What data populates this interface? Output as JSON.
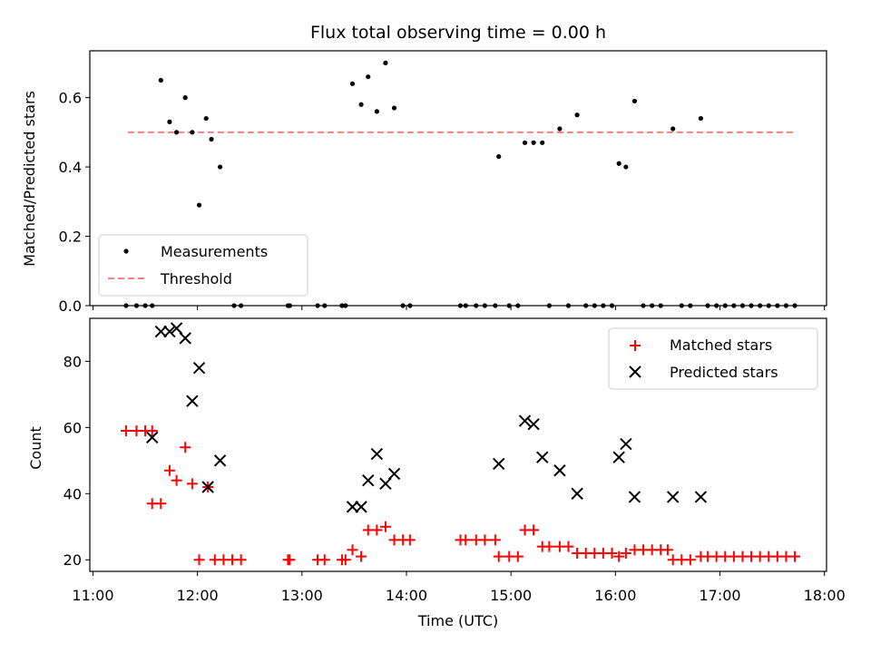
{
  "chart_data": [
    {
      "type": "scatter",
      "title": "Flux total observing time = 0.00 h",
      "xlabel": "",
      "ylabel": "Matched/Predicted stars",
      "xlim_hours": [
        10.97,
        18.02
      ],
      "ylim": [
        0,
        0.735
      ],
      "yticks": [
        "0.0",
        "0.2",
        "0.4",
        "0.6"
      ],
      "legend": {
        "position": "lower-left",
        "entries": [
          "Measurements",
          "Threshold"
        ]
      },
      "threshold": {
        "name": "Threshold",
        "y": 0.5,
        "x_start": "11:20",
        "x_end": "17:43",
        "color": "#ff7f7f"
      },
      "series": [
        {
          "name": "Measurements",
          "color": "#000000",
          "points": [
            [
              "11:19",
              0.0
            ],
            [
              "11:25",
              0.0
            ],
            [
              "11:30",
              0.0
            ],
            [
              "11:34",
              0.0
            ],
            [
              "11:39",
              0.65
            ],
            [
              "11:44",
              0.53
            ],
            [
              "11:48",
              0.5
            ],
            [
              "11:53",
              0.6
            ],
            [
              "11:57",
              0.5
            ],
            [
              "12:01",
              0.29
            ],
            [
              "12:05",
              0.54
            ],
            [
              "12:08",
              0.48
            ],
            [
              "12:13",
              0.4
            ],
            [
              "12:21",
              0.0
            ],
            [
              "12:25",
              0.0
            ],
            [
              "12:52",
              0.0
            ],
            [
              "12:53",
              0.0
            ],
            [
              "13:09",
              0.0
            ],
            [
              "13:13",
              0.0
            ],
            [
              "13:23",
              0.0
            ],
            [
              "13:25",
              0.0
            ],
            [
              "13:29",
              0.64
            ],
            [
              "13:34",
              0.58
            ],
            [
              "13:38",
              0.66
            ],
            [
              "13:43",
              0.56
            ],
            [
              "13:48",
              0.7
            ],
            [
              "13:53",
              0.57
            ],
            [
              "13:58",
              0.0
            ],
            [
              "14:02",
              0.0
            ],
            [
              "14:31",
              0.0
            ],
            [
              "14:34",
              0.0
            ],
            [
              "14:40",
              0.0
            ],
            [
              "14:45",
              0.0
            ],
            [
              "14:51",
              0.0
            ],
            [
              "14:53",
              0.43
            ],
            [
              "14:59",
              0.0
            ],
            [
              "15:04",
              0.0
            ],
            [
              "15:08",
              0.47
            ],
            [
              "15:13",
              0.47
            ],
            [
              "15:18",
              0.47
            ],
            [
              "15:22",
              0.0
            ],
            [
              "15:28",
              0.51
            ],
            [
              "15:33",
              0.0
            ],
            [
              "15:38",
              0.55
            ],
            [
              "15:43",
              0.0
            ],
            [
              "15:48",
              0.0
            ],
            [
              "15:53",
              0.0
            ],
            [
              "15:58",
              0.0
            ],
            [
              "16:02",
              0.41
            ],
            [
              "16:06",
              0.4
            ],
            [
              "16:11",
              0.59
            ],
            [
              "16:16",
              0.0
            ],
            [
              "16:21",
              0.0
            ],
            [
              "16:26",
              0.0
            ],
            [
              "16:33",
              0.51
            ],
            [
              "16:38",
              0.0
            ],
            [
              "16:43",
              0.0
            ],
            [
              "16:49",
              0.54
            ],
            [
              "16:53",
              0.0
            ],
            [
              "16:58",
              0.0
            ],
            [
              "17:03",
              0.0
            ],
            [
              "17:08",
              0.0
            ],
            [
              "17:13",
              0.0
            ],
            [
              "17:18",
              0.0
            ],
            [
              "17:23",
              0.0
            ],
            [
              "17:28",
              0.0
            ],
            [
              "17:33",
              0.0
            ],
            [
              "17:38",
              0.0
            ],
            [
              "17:43",
              0.0
            ]
          ]
        }
      ]
    },
    {
      "type": "scatter",
      "title": "",
      "xlabel": "Time (UTC)",
      "ylabel": "Count",
      "xlim_hours": [
        10.97,
        18.02
      ],
      "ylim": [
        16.5,
        93
      ],
      "yticks": [
        "20",
        "40",
        "60",
        "80"
      ],
      "xticks": [
        "11:00",
        "12:00",
        "13:00",
        "14:00",
        "15:00",
        "16:00",
        "17:00",
        "18:00"
      ],
      "legend": {
        "position": "top-right",
        "entries": [
          "Matched stars",
          "Predicted stars"
        ]
      },
      "series": [
        {
          "name": "Matched stars",
          "color": "#ff0000",
          "marker": "+",
          "points": [
            [
              "11:19",
              59
            ],
            [
              "11:25",
              59
            ],
            [
              "11:30",
              59
            ],
            [
              "11:34",
              59
            ],
            [
              "11:34",
              37
            ],
            [
              "11:39",
              37
            ],
            [
              "11:44",
              47
            ],
            [
              "11:48",
              44
            ],
            [
              "11:53",
              54
            ],
            [
              "11:57",
              43
            ],
            [
              "12:01",
              20
            ],
            [
              "12:06",
              42
            ],
            [
              "12:10",
              20
            ],
            [
              "12:15",
              20
            ],
            [
              "12:20",
              20
            ],
            [
              "12:25",
              20
            ],
            [
              "12:52",
              20
            ],
            [
              "12:53",
              20
            ],
            [
              "13:09",
              20
            ],
            [
              "13:13",
              20
            ],
            [
              "13:23",
              20
            ],
            [
              "13:25",
              20
            ],
            [
              "13:29",
              23
            ],
            [
              "13:34",
              21
            ],
            [
              "13:38",
              29
            ],
            [
              "13:43",
              29
            ],
            [
              "13:48",
              30
            ],
            [
              "13:53",
              26
            ],
            [
              "13:58",
              26
            ],
            [
              "14:02",
              26
            ],
            [
              "14:31",
              26
            ],
            [
              "14:34",
              26
            ],
            [
              "14:40",
              26
            ],
            [
              "14:45",
              26
            ],
            [
              "14:51",
              26
            ],
            [
              "14:53",
              21
            ],
            [
              "14:59",
              21
            ],
            [
              "15:04",
              21
            ],
            [
              "15:08",
              29
            ],
            [
              "15:13",
              29
            ],
            [
              "15:18",
              24
            ],
            [
              "15:22",
              24
            ],
            [
              "15:28",
              24
            ],
            [
              "15:33",
              24
            ],
            [
              "15:38",
              22
            ],
            [
              "15:43",
              22
            ],
            [
              "15:48",
              22
            ],
            [
              "15:53",
              22
            ],
            [
              "15:58",
              22
            ],
            [
              "16:02",
              21
            ],
            [
              "16:06",
              22
            ],
            [
              "16:11",
              23
            ],
            [
              "16:16",
              23
            ],
            [
              "16:21",
              23
            ],
            [
              "16:26",
              23
            ],
            [
              "16:30",
              23
            ],
            [
              "16:33",
              20
            ],
            [
              "16:38",
              20
            ],
            [
              "16:43",
              20
            ],
            [
              "16:49",
              21
            ],
            [
              "16:53",
              21
            ],
            [
              "16:58",
              21
            ],
            [
              "17:03",
              21
            ],
            [
              "17:08",
              21
            ],
            [
              "17:13",
              21
            ],
            [
              "17:18",
              21
            ],
            [
              "17:23",
              21
            ],
            [
              "17:28",
              21
            ],
            [
              "17:33",
              21
            ],
            [
              "17:38",
              21
            ],
            [
              "17:43",
              21
            ]
          ]
        },
        {
          "name": "Predicted stars",
          "color": "#000000",
          "marker": "x",
          "points": [
            [
              "11:34",
              57
            ],
            [
              "11:39",
              89
            ],
            [
              "11:44",
              89
            ],
            [
              "11:48",
              90
            ],
            [
              "11:53",
              87
            ],
            [
              "11:57",
              68
            ],
            [
              "12:01",
              78
            ],
            [
              "12:06",
              42
            ],
            [
              "12:13",
              50
            ],
            [
              "13:29",
              36
            ],
            [
              "13:34",
              36
            ],
            [
              "13:38",
              44
            ],
            [
              "13:43",
              52
            ],
            [
              "13:48",
              43
            ],
            [
              "13:53",
              46
            ],
            [
              "14:53",
              49
            ],
            [
              "15:08",
              62
            ],
            [
              "15:13",
              61
            ],
            [
              "15:18",
              51
            ],
            [
              "15:28",
              47
            ],
            [
              "15:38",
              40
            ],
            [
              "16:02",
              51
            ],
            [
              "16:06",
              55
            ],
            [
              "16:11",
              39
            ],
            [
              "16:33",
              39
            ],
            [
              "16:49",
              39
            ]
          ]
        }
      ]
    }
  ]
}
